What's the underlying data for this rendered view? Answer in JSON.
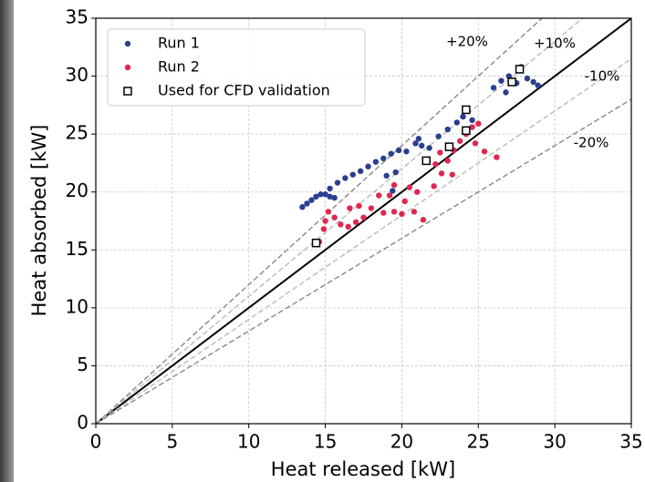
{
  "chart_data": {
    "type": "scatter",
    "xlabel": "Heat released [kW]",
    "ylabel": "Heat absorbed [kW]",
    "xlim": [
      0,
      35
    ],
    "ylim": [
      0,
      35
    ],
    "xticks": [
      0,
      5,
      10,
      15,
      20,
      25,
      30,
      35
    ],
    "yticks": [
      0,
      5,
      10,
      15,
      20,
      25,
      30,
      35
    ],
    "grid": true,
    "legend": "upper left",
    "series": [
      {
        "name": "Run 1",
        "color": "#2a3f8f",
        "marker": "circle",
        "x": [
          13.5,
          13.8,
          14.1,
          14.4,
          14.7,
          15.0,
          15.3,
          15.6,
          15.3,
          15.8,
          16.3,
          16.8,
          17.3,
          17.8,
          18.3,
          18.8,
          19.3,
          19.8,
          20.3,
          19.0,
          19.6,
          19.4,
          20.9,
          21.1,
          21.3,
          21.8,
          22.4,
          23.0,
          23.6,
          24.0,
          24.3,
          24.6,
          26.0,
          26.5,
          27.0,
          27.5,
          27.8,
          28.2,
          28.6,
          28.9,
          26.8
        ],
        "y": [
          18.7,
          19.0,
          19.3,
          19.6,
          19.8,
          19.8,
          19.6,
          19.5,
          20.3,
          20.8,
          21.2,
          21.5,
          21.8,
          22.2,
          22.6,
          22.9,
          23.3,
          23.6,
          23.5,
          21.4,
          21.7,
          20.1,
          24.2,
          24.6,
          24.0,
          23.8,
          24.8,
          25.4,
          26.0,
          26.5,
          27.0,
          26.2,
          29.0,
          29.6,
          30.0,
          29.4,
          30.8,
          29.8,
          29.5,
          29.2,
          28.6
        ]
      },
      {
        "name": "Run 2",
        "color": "#e0284f",
        "marker": "circle",
        "x": [
          14.3,
          14.6,
          14.9,
          15.0,
          15.2,
          15.6,
          16.0,
          16.5,
          17.0,
          17.5,
          16.6,
          17.2,
          18.0,
          18.8,
          19.5,
          20.0,
          18.5,
          19.2,
          20.2,
          20.5,
          21.0,
          20.8,
          21.4,
          22.1,
          22.6,
          22.2,
          23.0,
          23.4,
          23.8,
          24.2,
          24.6,
          25.0,
          24.8,
          25.4,
          26.2,
          22.5,
          23.3,
          19.5
        ],
        "y": [
          15.5,
          15.7,
          16.8,
          17.5,
          18.3,
          17.8,
          17.2,
          17.0,
          17.4,
          17.8,
          18.6,
          18.8,
          18.6,
          18.2,
          18.3,
          18.1,
          19.7,
          19.7,
          19.2,
          20.4,
          20.0,
          18.3,
          17.6,
          20.5,
          21.6,
          22.4,
          22.7,
          23.6,
          24.4,
          25.0,
          25.6,
          25.9,
          24.2,
          23.5,
          23.0,
          23.4,
          21.5,
          20.6
        ]
      },
      {
        "name": "Used for CFD validation",
        "color": "#000000",
        "marker": "square",
        "x": [
          14.4,
          21.6,
          23.1,
          24.2,
          24.2,
          27.2,
          27.7
        ],
        "y": [
          15.6,
          22.7,
          23.9,
          25.3,
          27.1,
          29.5,
          30.6
        ]
      }
    ],
    "reference_lines": [
      {
        "slope": 1,
        "color": "#000000"
      },
      {
        "label": "+20%",
        "slope": 1.2,
        "color": "#888888"
      },
      {
        "label": "+10%",
        "slope": 1.1,
        "color": "#bbbbbb"
      },
      {
        "label": "-10%",
        "slope": 0.9,
        "color": "#bbbbbb"
      },
      {
        "label": "-20%",
        "slope": 0.8,
        "color": "#888888"
      }
    ]
  }
}
